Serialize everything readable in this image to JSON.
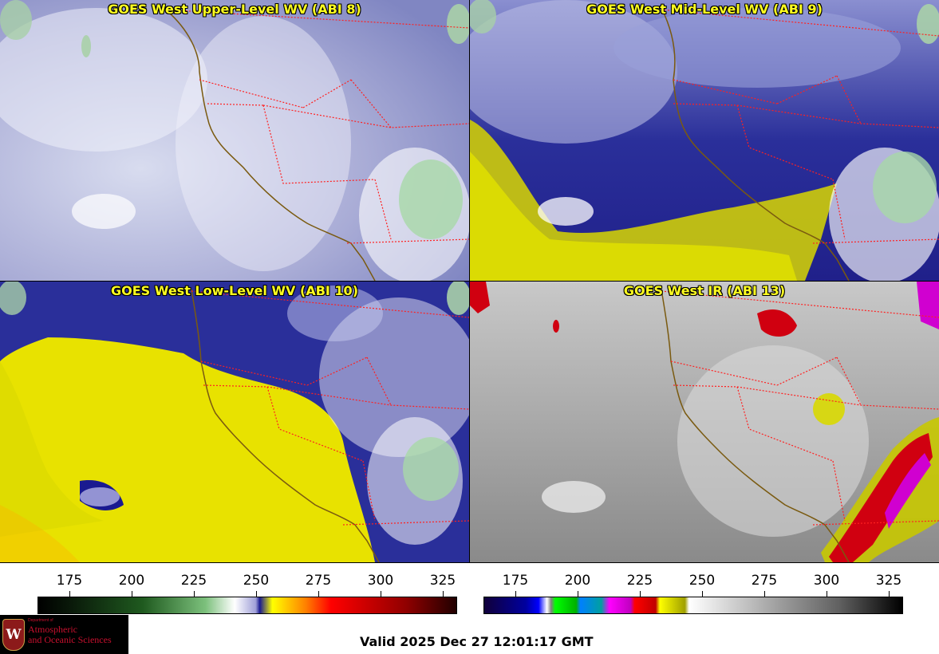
{
  "panels": {
    "upper": {
      "title": "GOES West Upper-Level WV (ABI 8)"
    },
    "mid": {
      "title": "GOES West Mid-Level WV (ABI 9)"
    },
    "low": {
      "title": "GOES West Low-Level WV (ABI 10)"
    },
    "ir": {
      "title": "GOES West IR (ABI 13)"
    }
  },
  "colorbars": {
    "wv": {
      "ticks": [
        "175",
        "200",
        "225",
        "250",
        "275",
        "300",
        "325"
      ]
    },
    "ir": {
      "ticks": [
        "175",
        "200",
        "225",
        "250",
        "275",
        "300",
        "325"
      ]
    }
  },
  "logo": {
    "department": "Department of",
    "line1": "Atmospheric",
    "line2": "and Oceanic Sciences",
    "crest_letter": "W"
  },
  "valid_time": "Valid 2025 Dec 27 12:01:17 GMT",
  "colors": {
    "border_state": "#ff2020",
    "coastline": "#7a5a10",
    "title_text": "#ffff20"
  }
}
